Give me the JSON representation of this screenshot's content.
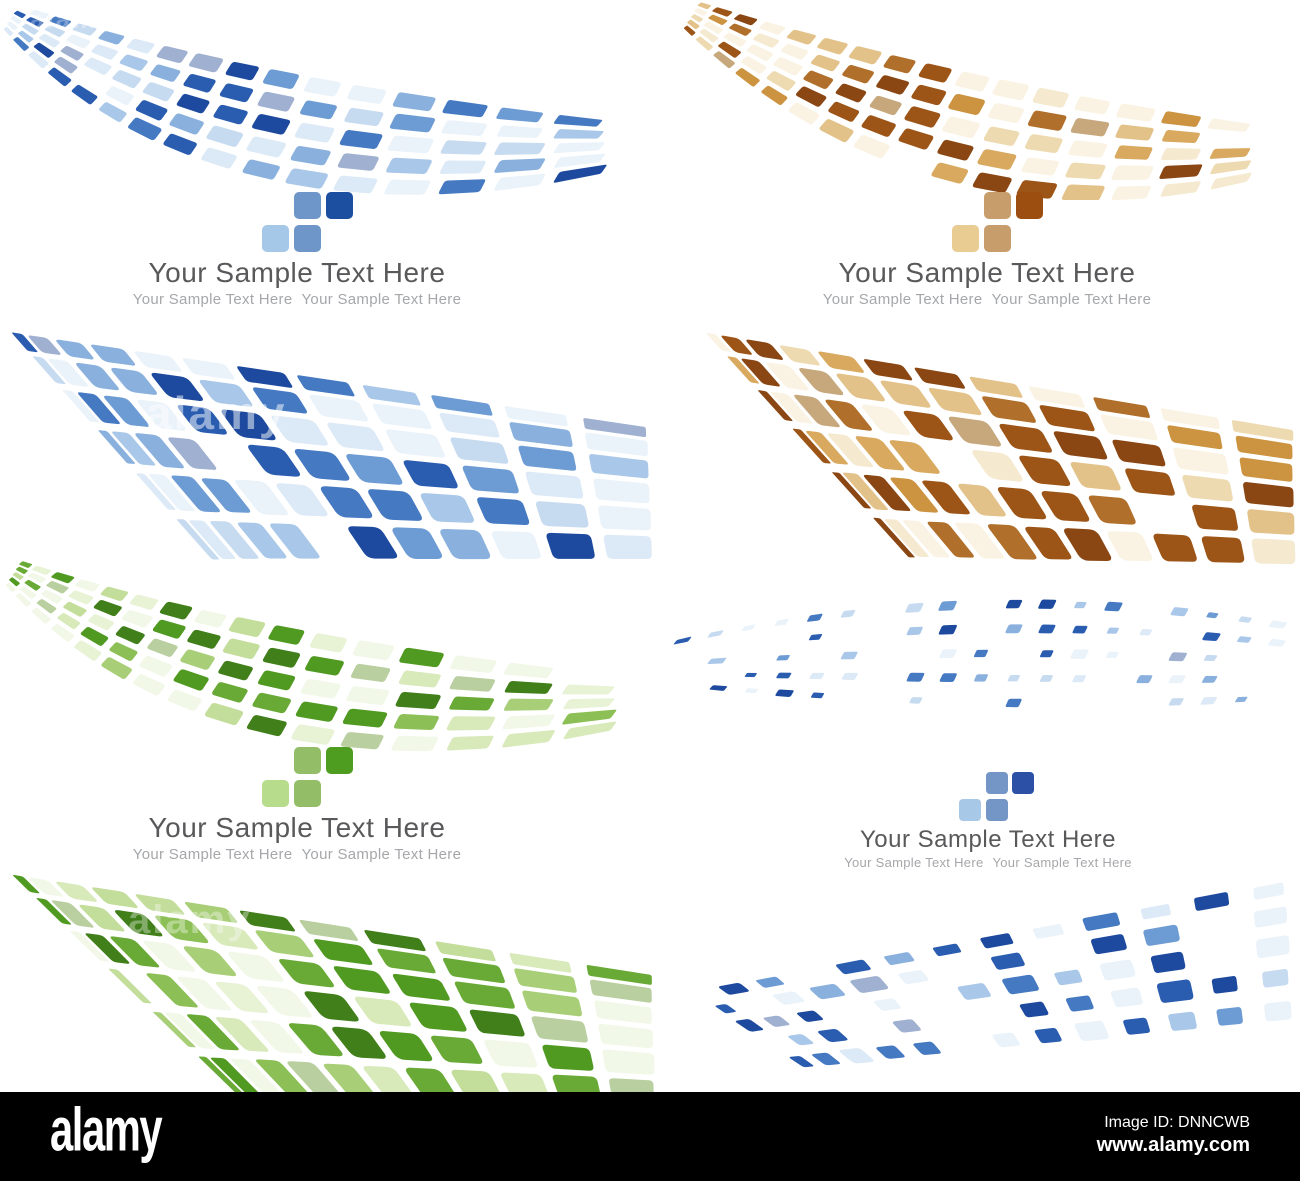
{
  "page": {
    "background": "#ffffff"
  },
  "blocks": [
    {
      "id": "blue-top-left",
      "main": "Your Sample Text Here",
      "sub1": "Your Sample Text Here",
      "sub2": "Your Sample Text Here",
      "logo_colors": {
        "light": "#a5c8e9",
        "mid": "#6e96c8",
        "dark": "#1d4fa1"
      }
    },
    {
      "id": "orange-top-right",
      "main": "Your Sample Text Here",
      "sub1": "Your Sample Text Here",
      "sub2": "Your Sample Text Here",
      "logo_colors": {
        "light": "#e9cc92",
        "mid": "#c69d6b",
        "dark": "#9b4e10"
      }
    },
    {
      "id": "green-bottom-left",
      "main": "Your Sample Text Here",
      "sub1": "Your Sample Text Here",
      "sub2": "Your Sample Text Here",
      "logo_colors": {
        "light": "#b6dc8c",
        "mid": "#93bd67",
        "dark": "#4f9d20"
      }
    },
    {
      "id": "blue-bottom-right",
      "main": "Your Sample Text Here",
      "sub1": "Your Sample Text Here",
      "sub2": "Your Sample Text Here",
      "logo_colors": {
        "light": "#a8c8e8",
        "mid": "#7396c6",
        "dark": "#2b50a5"
      }
    }
  ],
  "text_colors": {
    "main": "#59595b",
    "sub": "#a5a7aa"
  },
  "palettes": {
    "blue": [
      "#eaf2fa",
      "#dce9f6",
      "#c7dbf0",
      "#a9c7e8",
      "#8ab1de",
      "#6d9bd4",
      "#9fb0d0",
      "#4579c2",
      "#2a5cb0",
      "#1d4a9e"
    ],
    "orange": [
      "#faf3e3",
      "#f5e9cf",
      "#eedab0",
      "#e3c28a",
      "#d8a95f",
      "#cc9340",
      "#c7a77c",
      "#b06f2a",
      "#9c5517",
      "#8a4713"
    ],
    "green": [
      "#f2f8e8",
      "#e8f2d5",
      "#d8e9ba",
      "#c3dd9b",
      "#a8cf77",
      "#8cc056",
      "#b9cfa0",
      "#69aa36",
      "#519a22",
      "#417f1a"
    ]
  },
  "watermark": {
    "brand": "alamy",
    "image_id": "Image ID: DNNCWB",
    "url": "www.alamy.com",
    "ghost_text": "alamy",
    "bar_color": "#000000",
    "text_color": "#ffffff"
  }
}
